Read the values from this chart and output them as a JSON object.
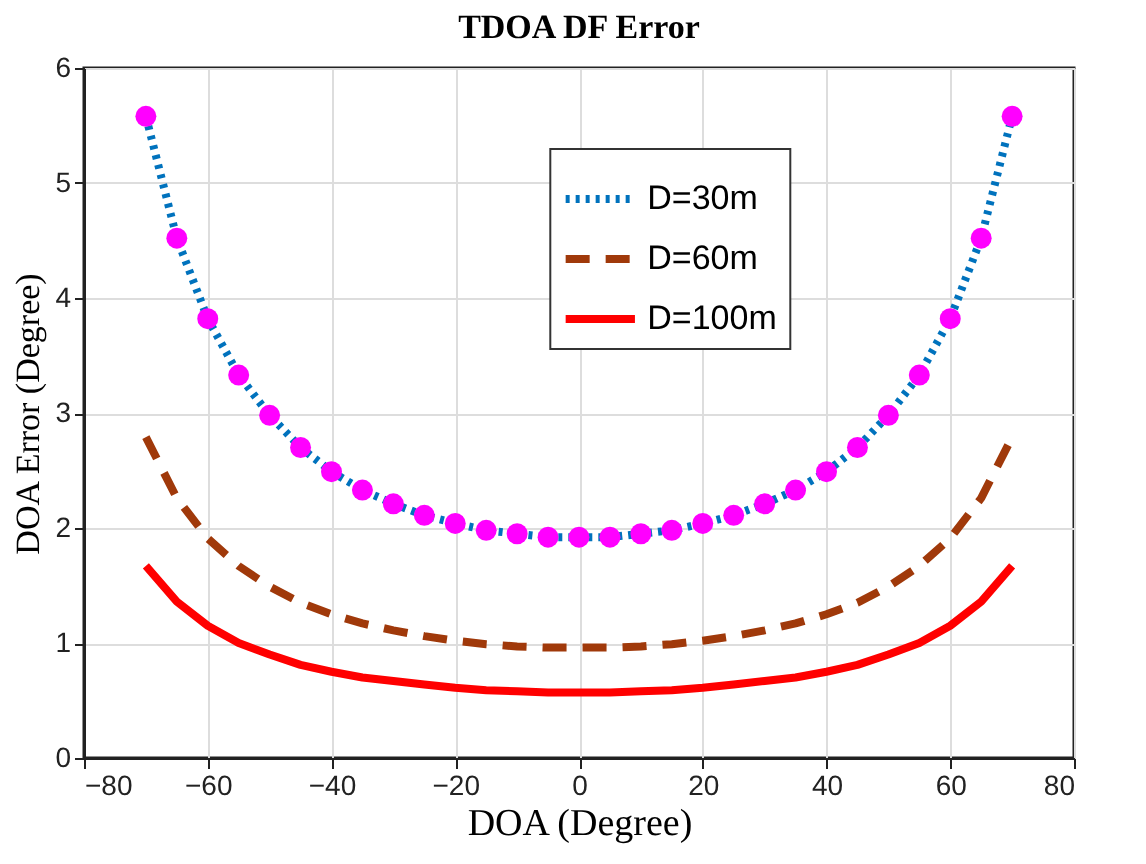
{
  "chart_data": {
    "type": "line",
    "title": "TDOA DF Error",
    "xlabel": "DOA (Degree)",
    "ylabel": "DOA Error (Degree)",
    "x": [
      -70,
      -65,
      -60,
      -55,
      -50,
      -45,
      -40,
      -35,
      -30,
      -25,
      -20,
      -15,
      -10,
      -5,
      0,
      5,
      10,
      15,
      20,
      25,
      30,
      35,
      40,
      45,
      50,
      55,
      60,
      65,
      70
    ],
    "series": [
      {
        "name": "D=30m",
        "color": "#0072bd",
        "marker": "circle",
        "line_style": "dotted",
        "values": [
          5.58,
          4.52,
          3.82,
          3.33,
          2.98,
          2.7,
          2.49,
          2.33,
          2.21,
          2.11,
          2.04,
          1.98,
          1.95,
          1.92,
          1.92,
          1.92,
          1.95,
          1.98,
          2.04,
          2.11,
          2.21,
          2.33,
          2.49,
          2.7,
          2.98,
          3.33,
          3.82,
          4.52,
          5.58
        ]
      },
      {
        "name": "D=60m",
        "color": "#a0390a",
        "marker": "none",
        "line_style": "dashed",
        "values": [
          2.79,
          2.26,
          1.91,
          1.67,
          1.49,
          1.35,
          1.25,
          1.17,
          1.11,
          1.06,
          1.02,
          0.99,
          0.97,
          0.96,
          0.96,
          0.96,
          0.97,
          0.99,
          1.02,
          1.06,
          1.11,
          1.17,
          1.25,
          1.35,
          1.49,
          1.67,
          1.91,
          2.26,
          2.79
        ]
      },
      {
        "name": "D=100m",
        "color": "#ff0000",
        "marker": "none",
        "line_style": "solid",
        "values": [
          1.67,
          1.36,
          1.15,
          1.0,
          0.9,
          0.81,
          0.75,
          0.7,
          0.67,
          0.64,
          0.61,
          0.59,
          0.58,
          0.57,
          0.57,
          0.57,
          0.58,
          0.59,
          0.61,
          0.64,
          0.67,
          0.7,
          0.75,
          0.81,
          0.9,
          1.0,
          1.15,
          1.36,
          1.67
        ]
      }
    ],
    "xlim": [
      -80,
      80
    ],
    "xticks": [
      -80,
      -60,
      -40,
      -20,
      0,
      20,
      40,
      60,
      80
    ],
    "ylim": [
      0,
      6
    ],
    "yticks": [
      0,
      1,
      2,
      3,
      4,
      5,
      6
    ],
    "grid": true,
    "legend": "top"
  }
}
